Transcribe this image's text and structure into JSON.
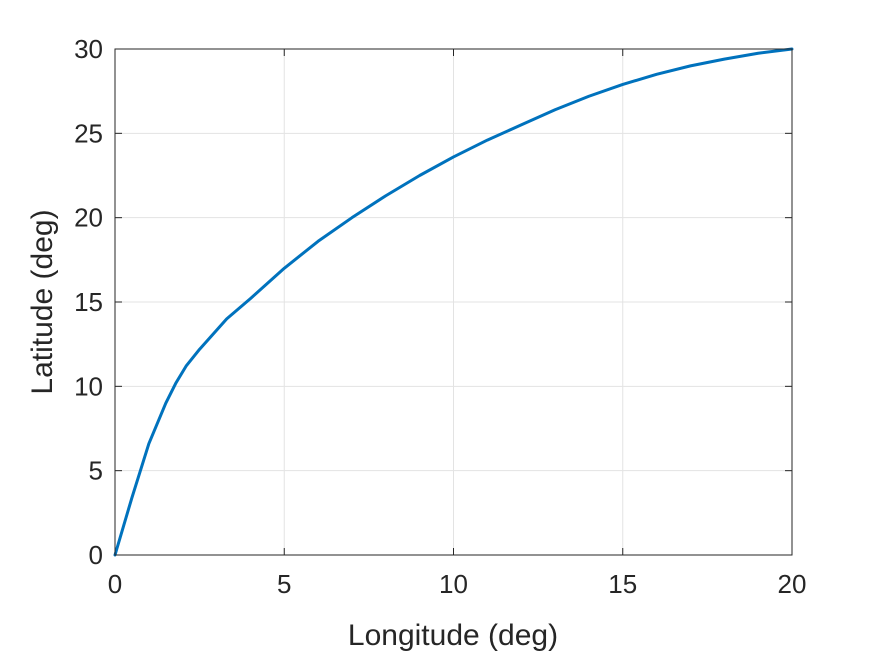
{
  "chart_data": {
    "type": "line",
    "title": "",
    "xlabel": "Longitude (deg)",
    "ylabel": "Latitude (deg)",
    "xlim": [
      0,
      20
    ],
    "ylim": [
      0,
      30
    ],
    "xticks": [
      0,
      5,
      10,
      15,
      20
    ],
    "yticks": [
      0,
      5,
      10,
      15,
      20,
      25,
      30
    ],
    "xtick_labels": [
      "0",
      "5",
      "10",
      "15",
      "20"
    ],
    "ytick_labels": [
      "0",
      "5",
      "10",
      "15",
      "20",
      "25",
      "30"
    ],
    "grid": true,
    "legend": "none",
    "colors": {
      "line": "#0072BD",
      "axes": "#262626",
      "grid": "#e3e3e3"
    },
    "series": [
      {
        "x": [
          0,
          0.5,
          1.0,
          1.5,
          1.8,
          2.1,
          2.5,
          3.3,
          4.0,
          5.0,
          6.0,
          7.0,
          8.0,
          9.0,
          10.0,
          11.0,
          12.0,
          13.0,
          14.0,
          15.0,
          16.0,
          17.0,
          18.0,
          19.0,
          20.0
        ],
        "y": [
          0,
          3.4,
          6.6,
          9.0,
          10.2,
          11.2,
          12.2,
          14.0,
          15.2,
          17.0,
          18.6,
          20.0,
          21.3,
          22.5,
          23.6,
          24.6,
          25.5,
          26.4,
          27.2,
          27.9,
          28.5,
          29.0,
          29.4,
          29.75,
          30.0
        ]
      }
    ]
  }
}
